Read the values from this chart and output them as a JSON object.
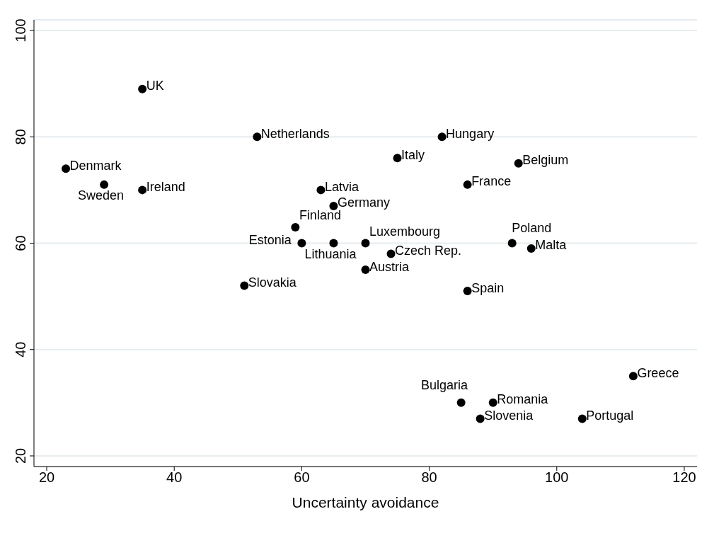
{
  "chart_data": {
    "type": "scatter",
    "xlabel": "Uncertainty avoidance",
    "series": [
      {
        "color": "#000000",
        "x": [
          35,
          53,
          82,
          75,
          94,
          23,
          29,
          35,
          86,
          63,
          65,
          59,
          60,
          65,
          70,
          74,
          93,
          96,
          70,
          51,
          86,
          112,
          85,
          90,
          88,
          104
        ],
        "values": [
          89,
          80,
          80,
          76,
          75,
          74,
          71,
          70,
          71,
          70,
          67,
          63,
          60,
          60,
          60,
          58,
          60,
          59,
          55,
          52,
          51,
          35,
          30,
          30,
          27,
          27
        ],
        "value_labels": [
          "UK",
          "Netherlands",
          "Hungary",
          "Italy",
          "Belgium",
          "Denmark",
          "Sweden",
          "Ireland",
          "France",
          "Latvia",
          "Germany",
          "Finland",
          "Estonia",
          "Lithuania",
          "Luxembourg",
          "Czech Rep.",
          "Poland",
          "Malta",
          "Austria",
          "Slovakia",
          "Spain",
          "Greece",
          "Bulgaria",
          "Romania",
          "Slovenia",
          "Portugal"
        ]
      }
    ],
    "xlim": [
      18,
      122
    ],
    "xticks": [
      20,
      40,
      60,
      80,
      100,
      120
    ],
    "ylim": [
      18,
      102
    ],
    "yticks": [
      20,
      40,
      60,
      80,
      100
    ],
    "grid": "y",
    "marker": "circle"
  }
}
